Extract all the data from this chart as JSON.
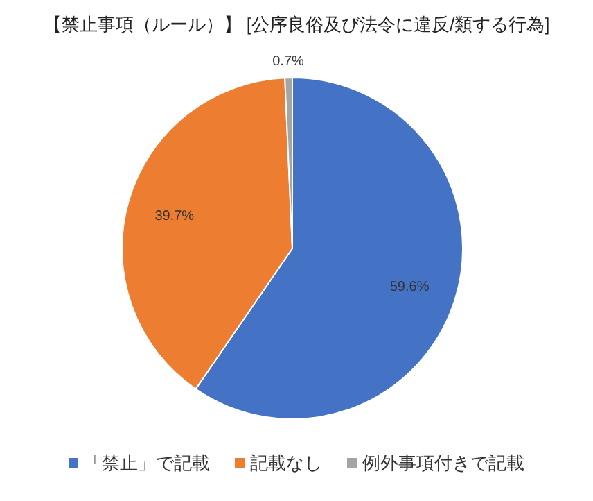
{
  "chart_data": {
    "type": "pie",
    "title": "【禁止事項（ルール）】 [公序良俗及び法令に違反/類する行為]",
    "categories": [
      "「禁止」で記載",
      "記載なし",
      "例外事項付きで記載"
    ],
    "values": [
      59.6,
      39.7,
      0.7
    ],
    "value_labels": [
      "59.6%",
      "39.7%",
      "0.7%"
    ],
    "colors": [
      "#4472c4",
      "#ed7d31",
      "#a5a5a5"
    ],
    "legend": "bottom"
  }
}
